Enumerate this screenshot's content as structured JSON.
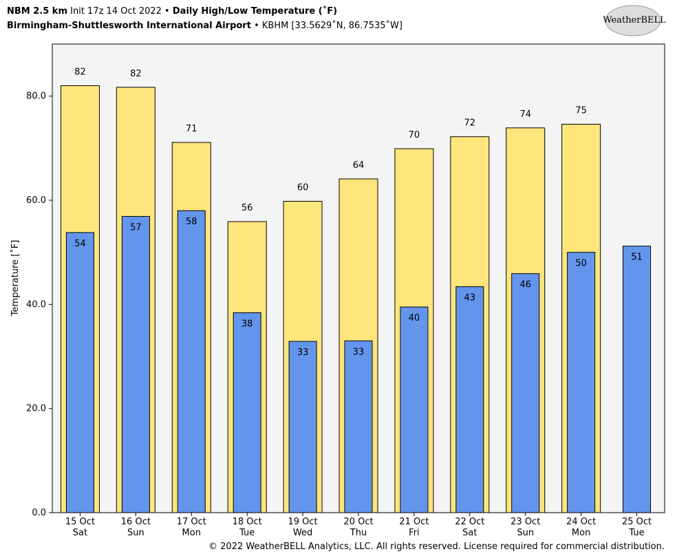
{
  "chart_data": {
    "type": "bar",
    "title_model": "NBM 2.5 km",
    "title_init": "Init 17z 14 Oct 2022 •",
    "title": "Daily High/Low Temperature (˚F)",
    "station": "Birmingham-Shuttlesworth International Airport",
    "station_info": "• KBHM [33.5629˚N, 86.7535˚W]",
    "logo": "WeatherBELL",
    "copyright": "© 2022 WeatherBELL Analytics, LLC. All rights reserved. License required for commercial distribution.",
    "ylabel": "Temperature [˚F]",
    "categories": [
      "15 Oct",
      "16 Oct",
      "17 Oct",
      "18 Oct",
      "19 Oct",
      "20 Oct",
      "21 Oct",
      "22 Oct",
      "23 Oct",
      "24 Oct",
      "25 Oct"
    ],
    "category_sublabels": [
      "Sat",
      "Sun",
      "Mon",
      "Tue",
      "Wed",
      "Thu",
      "Fri",
      "Sat",
      "Sun",
      "Mon",
      "Tue"
    ],
    "series": [
      {
        "color": "#fee57c",
        "values": [
          82.0,
          81.7,
          71.1,
          55.9,
          59.8,
          64.1,
          69.9,
          72.2,
          73.9,
          74.6,
          null
        ],
        "value_labels": [
          "82",
          "82",
          "71",
          "56",
          "60",
          "64",
          "70",
          "72",
          "74",
          "75",
          null
        ]
      },
      {
        "color": "#6495ed",
        "values": [
          53.8,
          56.9,
          58.0,
          38.4,
          32.9,
          33.0,
          39.5,
          43.4,
          45.9,
          50.0,
          51.2
        ],
        "value_labels": [
          "54",
          "57",
          "58",
          "38",
          "33",
          "33",
          "40",
          "43",
          "46",
          "50",
          "51"
        ]
      }
    ],
    "ylim": [
      0,
      90
    ],
    "yticks": [
      {
        "value": 0,
        "label": "0.0"
      },
      {
        "value": 20,
        "label": "20.0"
      },
      {
        "value": 40,
        "label": "40.0"
      },
      {
        "value": 60,
        "label": "60.0"
      },
      {
        "value": 80,
        "label": "80.0"
      }
    ],
    "grid": false
  }
}
